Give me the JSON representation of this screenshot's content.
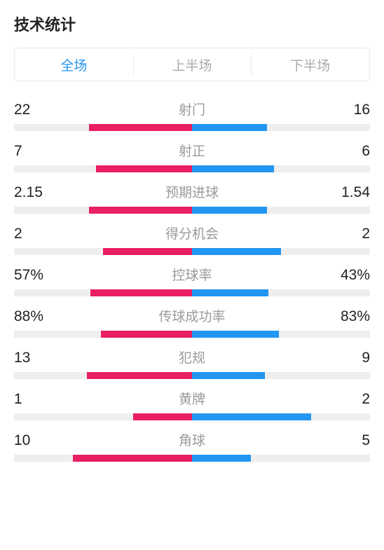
{
  "title": "技术统计",
  "colors": {
    "left": "#e91e63",
    "right": "#2196f3",
    "track": "#eeeeee",
    "tab_active": "#2196f3",
    "tab_inactive": "#aaaaaa",
    "label": "#9a9a9a",
    "value": "#222222"
  },
  "tabs": [
    {
      "label": "全场",
      "active": true
    },
    {
      "label": "上半场",
      "active": false
    },
    {
      "label": "下半场",
      "active": false
    }
  ],
  "stats": [
    {
      "label": "射门",
      "left_display": "22",
      "right_display": "16",
      "left_pct": 58,
      "right_pct": 42
    },
    {
      "label": "射正",
      "left_display": "7",
      "right_display": "6",
      "left_pct": 54,
      "right_pct": 46
    },
    {
      "label": "预期进球",
      "left_display": "2.15",
      "right_display": "1.54",
      "left_pct": 58,
      "right_pct": 42
    },
    {
      "label": "得分机会",
      "left_display": "2",
      "right_display": "2",
      "left_pct": 50,
      "right_pct": 50
    },
    {
      "label": "控球率",
      "left_display": "57%",
      "right_display": "43%",
      "left_pct": 57,
      "right_pct": 43
    },
    {
      "label": "传球成功率",
      "left_display": "88%",
      "right_display": "83%",
      "left_pct": 51,
      "right_pct": 49
    },
    {
      "label": "犯规",
      "left_display": "13",
      "right_display": "9",
      "left_pct": 59,
      "right_pct": 41
    },
    {
      "label": "黄牌",
      "left_display": "1",
      "right_display": "2",
      "left_pct": 33,
      "right_pct": 67
    },
    {
      "label": "角球",
      "left_display": "10",
      "right_display": "5",
      "left_pct": 67,
      "right_pct": 33
    }
  ]
}
